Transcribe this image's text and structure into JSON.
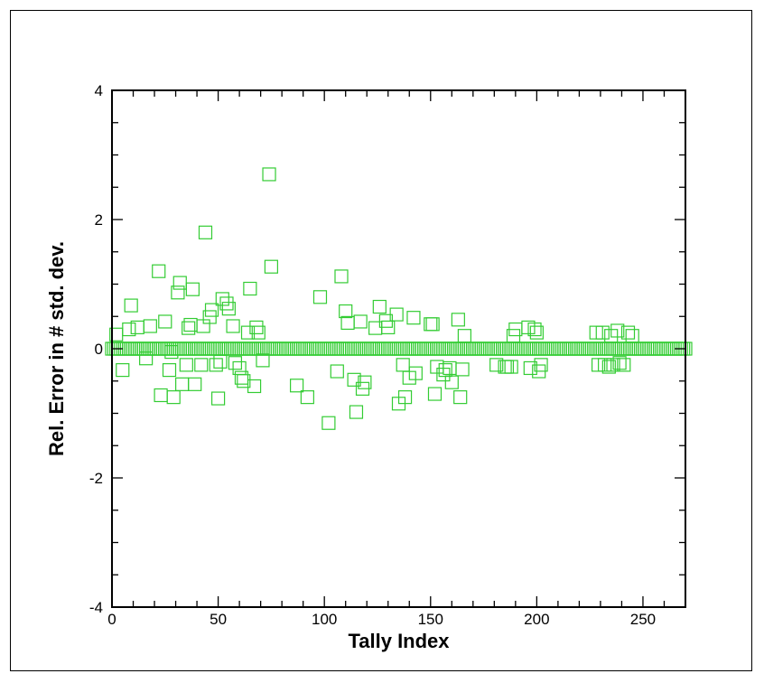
{
  "chart_data": {
    "type": "scatter",
    "xlabel": "Tally Index",
    "ylabel": "Rel. Error in # std. dev.",
    "xlim": [
      0,
      270
    ],
    "ylim": [
      -4,
      4
    ],
    "x_ticks": [
      "0",
      "50",
      "100",
      "150",
      "200",
      "250"
    ],
    "y_ticks": [
      "-4",
      "-2",
      "0",
      "2",
      "4"
    ],
    "grid": false,
    "marker": "open-square",
    "marker_color": "#33cc33",
    "series": [
      {
        "baseline_x_range": [
          0,
          270
        ],
        "baseline_y": 0,
        "points": [
          [
            2,
            0.22
          ],
          [
            5,
            -0.33
          ],
          [
            8,
            0.3
          ],
          [
            9,
            0.67
          ],
          [
            12,
            0.33
          ],
          [
            16,
            -0.15
          ],
          [
            18,
            0.35
          ],
          [
            22,
            1.2
          ],
          [
            23,
            -0.72
          ],
          [
            25,
            0.42
          ],
          [
            27,
            -0.33
          ],
          [
            28,
            -0.05
          ],
          [
            29,
            -0.75
          ],
          [
            31,
            0.87
          ],
          [
            32,
            1.02
          ],
          [
            33,
            -0.55
          ],
          [
            35,
            -0.25
          ],
          [
            36,
            0.32
          ],
          [
            37,
            0.37
          ],
          [
            38,
            0.92
          ],
          [
            39,
            -0.55
          ],
          [
            42,
            -0.25
          ],
          [
            43,
            0.35
          ],
          [
            44,
            1.8
          ],
          [
            46,
            0.49
          ],
          [
            47,
            0.6
          ],
          [
            49,
            -0.25
          ],
          [
            50,
            -0.77
          ],
          [
            51,
            -0.2
          ],
          [
            52,
            0.77
          ],
          [
            54,
            0.7
          ],
          [
            55,
            0.62
          ],
          [
            57,
            0.35
          ],
          [
            58,
            -0.22
          ],
          [
            60,
            -0.3
          ],
          [
            61,
            -0.45
          ],
          [
            62,
            -0.5
          ],
          [
            64,
            0.25
          ],
          [
            65,
            0.93
          ],
          [
            67,
            -0.58
          ],
          [
            68,
            0.33
          ],
          [
            69,
            0.25
          ],
          [
            71,
            -0.18
          ],
          [
            74,
            2.7
          ],
          [
            75,
            1.27
          ],
          [
            87,
            -0.57
          ],
          [
            92,
            -0.75
          ],
          [
            98,
            0.8
          ],
          [
            102,
            -1.15
          ],
          [
            106,
            -0.35
          ],
          [
            108,
            1.12
          ],
          [
            110,
            0.58
          ],
          [
            111,
            0.4
          ],
          [
            114,
            -0.48
          ],
          [
            115,
            -0.98
          ],
          [
            117,
            0.42
          ],
          [
            118,
            -0.62
          ],
          [
            119,
            -0.52
          ],
          [
            124,
            0.32
          ],
          [
            126,
            0.65
          ],
          [
            129,
            0.43
          ],
          [
            130,
            0.33
          ],
          [
            134,
            0.53
          ],
          [
            135,
            -0.85
          ],
          [
            137,
            -0.25
          ],
          [
            138,
            -0.75
          ],
          [
            140,
            -0.45
          ],
          [
            142,
            0.48
          ],
          [
            143,
            -0.38
          ],
          [
            150,
            0.38
          ],
          [
            151,
            0.38
          ],
          [
            152,
            -0.7
          ],
          [
            153,
            -0.28
          ],
          [
            156,
            -0.4
          ],
          [
            157,
            -0.33
          ],
          [
            159,
            -0.3
          ],
          [
            160,
            -0.52
          ],
          [
            163,
            0.45
          ],
          [
            164,
            -0.75
          ],
          [
            165,
            -0.32
          ],
          [
            166,
            0.2
          ],
          [
            181,
            -0.25
          ],
          [
            185,
            -0.28
          ],
          [
            186,
            -0.28
          ],
          [
            188,
            -0.28
          ],
          [
            189,
            0.2
          ],
          [
            190,
            0.3
          ],
          [
            196,
            0.33
          ],
          [
            197,
            -0.3
          ],
          [
            199,
            0.3
          ],
          [
            200,
            0.25
          ],
          [
            201,
            -0.35
          ],
          [
            202,
            -0.25
          ],
          [
            228,
            0.25
          ],
          [
            229,
            -0.25
          ],
          [
            231,
            0.25
          ],
          [
            232,
            -0.25
          ],
          [
            234,
            -0.28
          ],
          [
            235,
            0.2
          ],
          [
            236,
            -0.25
          ],
          [
            238,
            0.28
          ],
          [
            239,
            -0.22
          ],
          [
            241,
            -0.25
          ],
          [
            243,
            0.25
          ],
          [
            245,
            0.2
          ]
        ]
      }
    ]
  }
}
